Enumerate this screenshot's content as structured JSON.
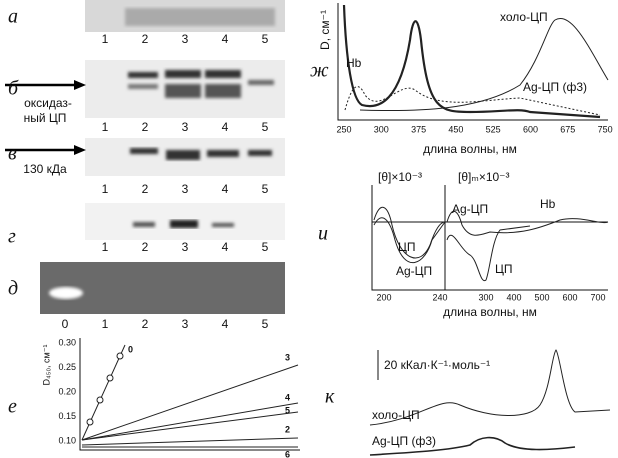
{
  "gels": [
    {
      "label": "а",
      "lanes": [
        "1",
        "2",
        "3",
        "4",
        "5"
      ]
    },
    {
      "label": "б",
      "marker": [
        "оксидаз-",
        "ный ЦП"
      ],
      "lanes": [
        "1",
        "2",
        "3",
        "4",
        "5"
      ]
    },
    {
      "label": "в",
      "marker": [
        "130 кДа"
      ],
      "lanes": [
        "1",
        "2",
        "3",
        "4",
        "5"
      ]
    },
    {
      "label": "г",
      "lanes": [
        "1",
        "2",
        "3",
        "4",
        "5"
      ]
    },
    {
      "label": "д",
      "lanes": [
        "0",
        "1",
        "2",
        "3",
        "4",
        "5"
      ]
    }
  ],
  "kinetics": {
    "label": "е",
    "y_label": "D₄₅₀, см⁻¹",
    "yticks": [
      "0.30",
      "0.25",
      "0.20",
      "0.15",
      "0.10"
    ],
    "curves": [
      "0",
      "3",
      "4",
      "5",
      "2",
      "6"
    ]
  },
  "absorption": {
    "label": "ж",
    "y_label": "D, см⁻¹",
    "x_label": "длина волны, нм",
    "xticks": [
      "250",
      "300",
      "375",
      "450",
      "525",
      "600",
      "675",
      "750"
    ],
    "curves": [
      "холо-ЦП",
      "Hb",
      "Ag-ЦП (ф3)"
    ]
  },
  "cd": {
    "label": "и",
    "y_label_left": "[θ]×10⁻³",
    "y_label_right": "[θ]ₘ×10⁻³",
    "x_label": "длина волны, нм",
    "xticks_left": [
      "200",
      "240"
    ],
    "xticks_right": [
      "300",
      "400",
      "500",
      "600",
      "700"
    ],
    "curves": [
      "ЦП",
      "Ag-ЦП",
      "Hb",
      "Ag-ЦП",
      "ЦП"
    ]
  },
  "calorimetry": {
    "label": "к",
    "scale": "20 кКал·К⁻¹·моль⁻¹",
    "curves": [
      "холо-ЦП",
      "Ag-ЦП (ф3)"
    ]
  }
}
